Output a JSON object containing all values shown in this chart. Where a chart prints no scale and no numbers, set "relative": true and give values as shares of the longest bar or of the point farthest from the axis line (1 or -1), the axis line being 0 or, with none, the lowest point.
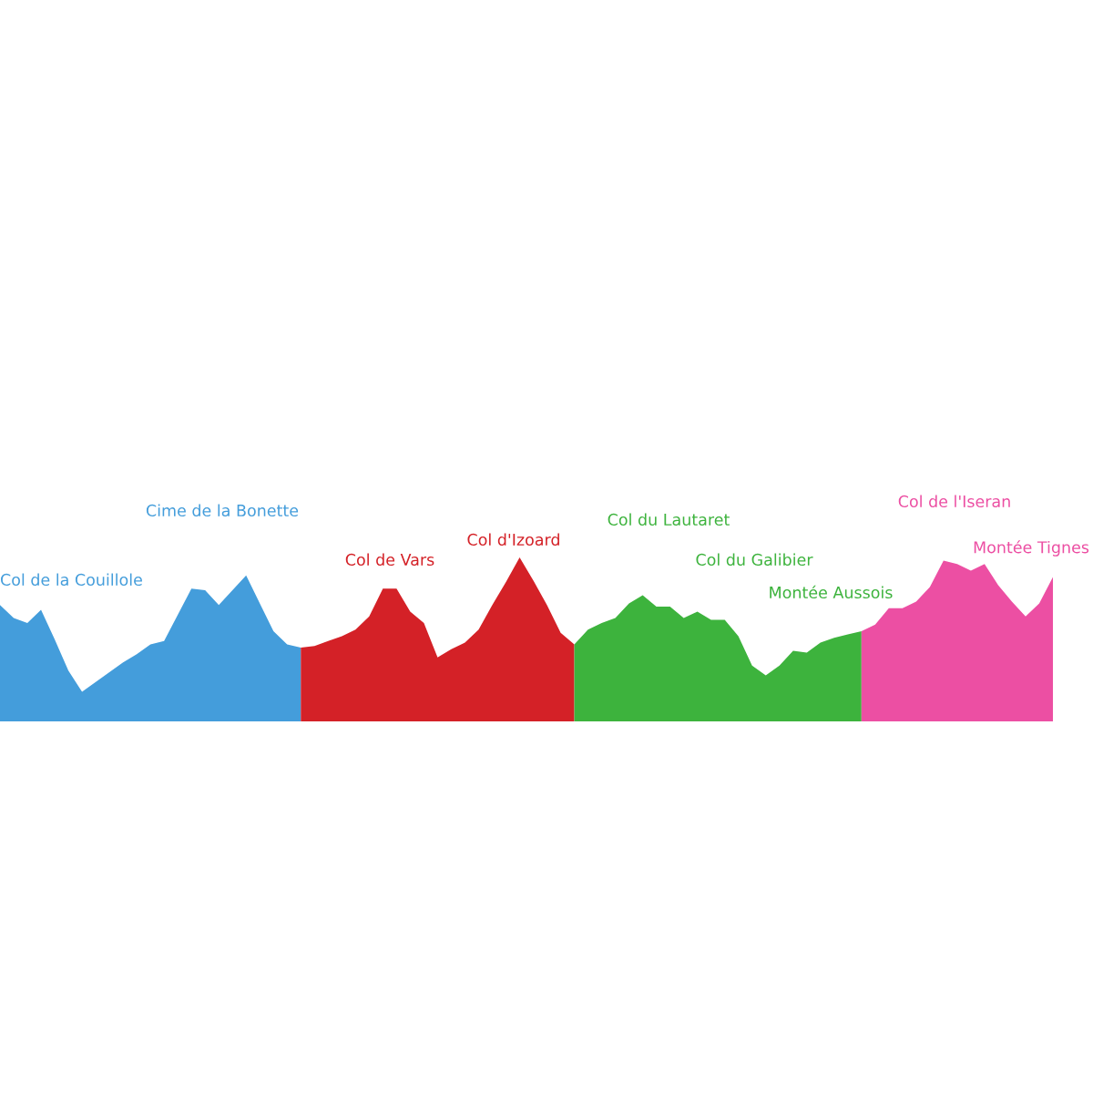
{
  "chart_data": {
    "type": "area",
    "relative": true,
    "categories": [
      null,
      null,
      null,
      null,
      null,
      null,
      null,
      null,
      null,
      null,
      null,
      null,
      null,
      null,
      null,
      null,
      null,
      null,
      null,
      null,
      null,
      null,
      null,
      null,
      null,
      null,
      null,
      null,
      null,
      null,
      null,
      null,
      null,
      null,
      null,
      null,
      null,
      null,
      null,
      null,
      null,
      null,
      null,
      null,
      null,
      null,
      null,
      null,
      null,
      null,
      null,
      null,
      null,
      null,
      null,
      null,
      null,
      null,
      null,
      null,
      null,
      null,
      null,
      null,
      null,
      null,
      null,
      null,
      null,
      null,
      null,
      null,
      null,
      null,
      null,
      null,
      null,
      null
    ],
    "series": [
      {
        "color": "#449ddb",
        "values": [
          0.71,
          0.63,
          0.6,
          0.68,
          0.5,
          0.31,
          0.18,
          0.24,
          0.3,
          0.36,
          0.41,
          0.47,
          0.49,
          0.65,
          0.81,
          0.8,
          0.71,
          0.8,
          0.89,
          0.72,
          0.55,
          0.47,
          0.45,
          null,
          null,
          null,
          null,
          null,
          null,
          null,
          null,
          null,
          null,
          null,
          null,
          null,
          null,
          null,
          null,
          null,
          null,
          null,
          null,
          null,
          null,
          null,
          null,
          null,
          null,
          null,
          null,
          null,
          null,
          null,
          null,
          null,
          null,
          null,
          null,
          null,
          null,
          null,
          null,
          null,
          null,
          null,
          null,
          null,
          null,
          null,
          null,
          null,
          null,
          null,
          null,
          null,
          null,
          null
        ]
      },
      {
        "color": "#d42127",
        "values": [
          null,
          null,
          null,
          null,
          null,
          null,
          null,
          null,
          null,
          null,
          null,
          null,
          null,
          null,
          null,
          null,
          null,
          null,
          null,
          null,
          null,
          null,
          0.45,
          0.46,
          0.49,
          0.52,
          0.56,
          0.64,
          0.81,
          0.81,
          0.67,
          0.6,
          0.39,
          0.44,
          0.48,
          0.56,
          0.71,
          0.85,
          1.0,
          0.86,
          0.71,
          0.54,
          0.47,
          null,
          null,
          null,
          null,
          null,
          null,
          null,
          null,
          null,
          null,
          null,
          null,
          null,
          null,
          null,
          null,
          null,
          null,
          null,
          null,
          null,
          null,
          null,
          null,
          null,
          null,
          null,
          null,
          null,
          null,
          null,
          null,
          null,
          null,
          null
        ]
      },
      {
        "color": "#3db33d",
        "values": [
          null,
          null,
          null,
          null,
          null,
          null,
          null,
          null,
          null,
          null,
          null,
          null,
          null,
          null,
          null,
          null,
          null,
          null,
          null,
          null,
          null,
          null,
          null,
          null,
          null,
          null,
          null,
          null,
          null,
          null,
          null,
          null,
          null,
          null,
          null,
          null,
          null,
          null,
          null,
          null,
          null,
          null,
          0.47,
          0.56,
          0.6,
          0.63,
          0.72,
          0.77,
          0.7,
          0.7,
          0.63,
          0.67,
          0.62,
          0.62,
          0.52,
          0.34,
          0.28,
          0.34,
          0.43,
          0.42,
          0.48,
          0.51,
          0.53,
          0.55,
          null,
          null,
          null,
          null,
          null,
          null,
          null,
          null,
          null,
          null,
          null,
          null,
          null,
          null
        ]
      },
      {
        "color": "#ec4fa3",
        "values": [
          null,
          null,
          null,
          null,
          null,
          null,
          null,
          null,
          null,
          null,
          null,
          null,
          null,
          null,
          null,
          null,
          null,
          null,
          null,
          null,
          null,
          null,
          null,
          null,
          null,
          null,
          null,
          null,
          null,
          null,
          null,
          null,
          null,
          null,
          null,
          null,
          null,
          null,
          null,
          null,
          null,
          null,
          null,
          null,
          null,
          null,
          null,
          null,
          null,
          null,
          null,
          null,
          null,
          null,
          null,
          null,
          null,
          null,
          null,
          null,
          null,
          null,
          null,
          0.55,
          0.59,
          0.69,
          0.69,
          0.73,
          0.82,
          0.98,
          0.96,
          0.92,
          0.96,
          0.83,
          0.73,
          0.64,
          0.72,
          0.88
        ]
      }
    ],
    "annotations": [
      "Col de la Couillole",
      "Cime de la Bonette",
      "Col de Vars",
      "Col d'Izoard",
      "Col du Lautaret",
      "Col du Galibier",
      "Montée Aussois",
      "Col de l'Iseran",
      "Montée Tignes"
    ]
  }
}
